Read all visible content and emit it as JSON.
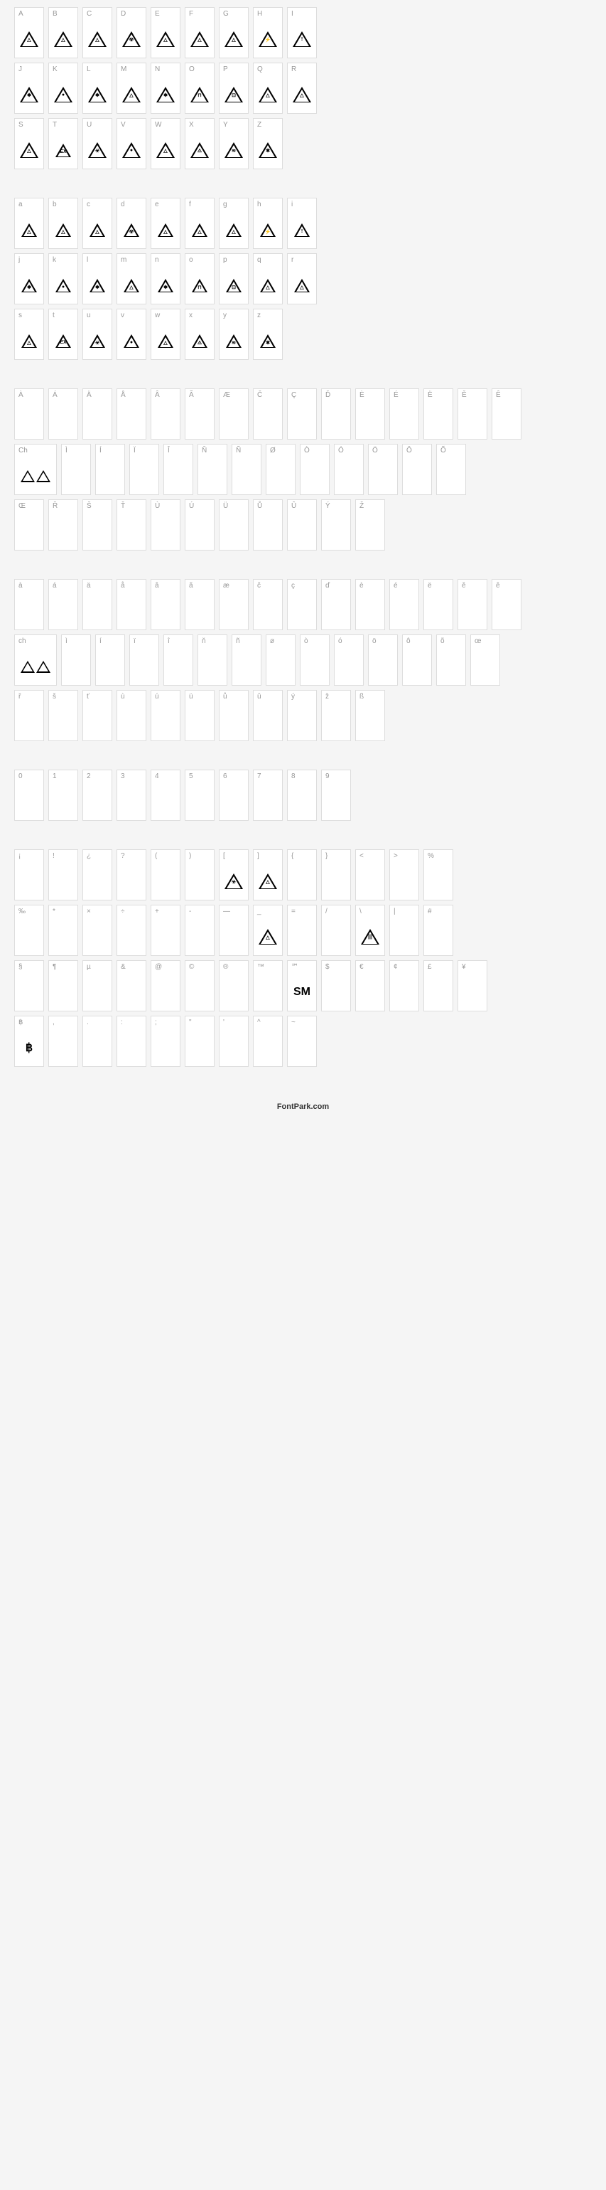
{
  "sections": [
    {
      "rows": [
        [
          {
            "label": "A",
            "glyph": "tri",
            "inner": "△"
          },
          {
            "label": "B",
            "glyph": "tri",
            "inner": "△"
          },
          {
            "label": "C",
            "glyph": "tri",
            "inner": "△"
          },
          {
            "label": "D",
            "glyph": "tri",
            "inner": "☢"
          },
          {
            "label": "E",
            "glyph": "tri",
            "inner": "△"
          },
          {
            "label": "F",
            "glyph": "tri",
            "inner": "△"
          },
          {
            "label": "G",
            "glyph": "tri",
            "inner": "△"
          },
          {
            "label": "H",
            "glyph": "tri",
            "inner": "⚡"
          },
          {
            "label": "I",
            "glyph": "tri",
            "inner": "!"
          }
        ],
        [
          {
            "label": "J",
            "glyph": "tri",
            "inner": "✱"
          },
          {
            "label": "K",
            "glyph": "tri",
            "inner": "●"
          },
          {
            "label": "L",
            "glyph": "tri",
            "inner": "✱"
          },
          {
            "label": "M",
            "glyph": "tri",
            "inner": "△"
          },
          {
            "label": "N",
            "glyph": "tri",
            "inner": "✱"
          },
          {
            "label": "O",
            "glyph": "tri",
            "inner": "⊓"
          },
          {
            "label": "P",
            "glyph": "tri",
            "inner": "⊡"
          },
          {
            "label": "Q",
            "glyph": "tri",
            "inner": "△"
          },
          {
            "label": "R",
            "glyph": "tri",
            "inner": "△"
          }
        ],
        [
          {
            "label": "S",
            "glyph": "tri",
            "inner": "△"
          },
          {
            "label": "T",
            "glyph": "tri",
            "inner": "EX",
            "small": true
          },
          {
            "label": "U",
            "glyph": "tri",
            "inner": "☣"
          },
          {
            "label": "V",
            "glyph": "tri",
            "inner": "●"
          },
          {
            "label": "W",
            "glyph": "tri",
            "inner": "△"
          },
          {
            "label": "X",
            "glyph": "tri",
            "inner": "⚠"
          },
          {
            "label": "Y",
            "glyph": "tri",
            "inner": "≋"
          },
          {
            "label": "Z",
            "glyph": "tri",
            "inner": "✱"
          }
        ]
      ]
    },
    {
      "rows": [
        [
          {
            "label": "a",
            "glyph": "tri",
            "inner": "△",
            "small": true
          },
          {
            "label": "b",
            "glyph": "tri",
            "inner": "△",
            "small": true
          },
          {
            "label": "c",
            "glyph": "tri",
            "inner": "△",
            "small": true
          },
          {
            "label": "d",
            "glyph": "tri",
            "inner": "☢",
            "small": true
          },
          {
            "label": "e",
            "glyph": "tri",
            "inner": "△",
            "small": true
          },
          {
            "label": "f",
            "glyph": "tri",
            "inner": "△",
            "small": true
          },
          {
            "label": "g",
            "glyph": "tri",
            "inner": "△",
            "small": true
          },
          {
            "label": "h",
            "glyph": "tri",
            "inner": "⚡",
            "small": true
          },
          {
            "label": "i",
            "glyph": "tri",
            "inner": "!",
            "small": true
          }
        ],
        [
          {
            "label": "j",
            "glyph": "tri",
            "inner": "✱",
            "small": true
          },
          {
            "label": "k",
            "glyph": "tri",
            "inner": "●",
            "small": true
          },
          {
            "label": "l",
            "glyph": "tri",
            "inner": "✱",
            "small": true
          },
          {
            "label": "m",
            "glyph": "tri",
            "inner": "△",
            "small": true
          },
          {
            "label": "n",
            "glyph": "tri",
            "inner": "✱",
            "small": true
          },
          {
            "label": "o",
            "glyph": "tri",
            "inner": "⊓",
            "small": true
          },
          {
            "label": "p",
            "glyph": "tri",
            "inner": "⊡",
            "small": true
          },
          {
            "label": "q",
            "glyph": "tri",
            "inner": "△",
            "small": true
          },
          {
            "label": "r",
            "glyph": "tri",
            "inner": "△",
            "small": true
          }
        ],
        [
          {
            "label": "s",
            "glyph": "tri",
            "inner": "△",
            "small": true
          },
          {
            "label": "t",
            "glyph": "tri",
            "inner": "EX",
            "small": true
          },
          {
            "label": "u",
            "glyph": "tri",
            "inner": "☣",
            "small": true
          },
          {
            "label": "v",
            "glyph": "tri",
            "inner": "●",
            "small": true
          },
          {
            "label": "w",
            "glyph": "tri",
            "inner": "△",
            "small": true
          },
          {
            "label": "x",
            "glyph": "tri",
            "inner": "⚠",
            "small": true
          },
          {
            "label": "y",
            "glyph": "tri",
            "inner": "≋",
            "small": true
          },
          {
            "label": "z",
            "glyph": "tri",
            "inner": "✱",
            "small": true
          }
        ]
      ]
    },
    {
      "rows": [
        [
          {
            "label": "À",
            "glyph": ""
          },
          {
            "label": "Á",
            "glyph": ""
          },
          {
            "label": "Ä",
            "glyph": ""
          },
          {
            "label": "Å",
            "glyph": ""
          },
          {
            "label": "Â",
            "glyph": ""
          },
          {
            "label": "Ã",
            "glyph": ""
          },
          {
            "label": "Æ",
            "glyph": ""
          },
          {
            "label": "Č",
            "glyph": ""
          },
          {
            "label": "Ç",
            "glyph": ""
          },
          {
            "label": "Ď",
            "glyph": ""
          },
          {
            "label": "È",
            "glyph": ""
          },
          {
            "label": "É",
            "glyph": ""
          },
          {
            "label": "Ë",
            "glyph": ""
          },
          {
            "label": "Ě",
            "glyph": ""
          },
          {
            "label": "Ê",
            "glyph": ""
          }
        ],
        [
          {
            "label": "Ch",
            "glyph": "dtri",
            "wide": true
          },
          {
            "label": "Ì",
            "glyph": ""
          },
          {
            "label": "Í",
            "glyph": ""
          },
          {
            "label": "Ï",
            "glyph": ""
          },
          {
            "label": "Î",
            "glyph": ""
          },
          {
            "label": "Ň",
            "glyph": ""
          },
          {
            "label": "Ñ",
            "glyph": ""
          },
          {
            "label": "Ø",
            "glyph": ""
          },
          {
            "label": "Ò",
            "glyph": ""
          },
          {
            "label": "Ó",
            "glyph": ""
          },
          {
            "label": "Ö",
            "glyph": ""
          },
          {
            "label": "Ô",
            "glyph": ""
          },
          {
            "label": "Õ",
            "glyph": ""
          }
        ],
        [
          {
            "label": "Œ",
            "glyph": ""
          },
          {
            "label": "Ř",
            "glyph": ""
          },
          {
            "label": "Š",
            "glyph": ""
          },
          {
            "label": "Ť",
            "glyph": ""
          },
          {
            "label": "Ù",
            "glyph": ""
          },
          {
            "label": "Ú",
            "glyph": ""
          },
          {
            "label": "Ü",
            "glyph": ""
          },
          {
            "label": "Ů",
            "glyph": ""
          },
          {
            "label": "Û",
            "glyph": ""
          },
          {
            "label": "Ý",
            "glyph": ""
          },
          {
            "label": "Ž",
            "glyph": ""
          }
        ]
      ]
    },
    {
      "rows": [
        [
          {
            "label": "à",
            "glyph": ""
          },
          {
            "label": "á",
            "glyph": ""
          },
          {
            "label": "ä",
            "glyph": ""
          },
          {
            "label": "å",
            "glyph": ""
          },
          {
            "label": "â",
            "glyph": ""
          },
          {
            "label": "ã",
            "glyph": ""
          },
          {
            "label": "æ",
            "glyph": ""
          },
          {
            "label": "č",
            "glyph": ""
          },
          {
            "label": "ç",
            "glyph": ""
          },
          {
            "label": "ď",
            "glyph": ""
          },
          {
            "label": "è",
            "glyph": ""
          },
          {
            "label": "é",
            "glyph": ""
          },
          {
            "label": "ë",
            "glyph": ""
          },
          {
            "label": "ě",
            "glyph": ""
          },
          {
            "label": "ê",
            "glyph": ""
          }
        ],
        [
          {
            "label": "ch",
            "glyph": "dtri",
            "wide": true,
            "small": true
          },
          {
            "label": "ì",
            "glyph": ""
          },
          {
            "label": "í",
            "glyph": ""
          },
          {
            "label": "ï",
            "glyph": ""
          },
          {
            "label": "î",
            "glyph": ""
          },
          {
            "label": "ň",
            "glyph": ""
          },
          {
            "label": "ñ",
            "glyph": ""
          },
          {
            "label": "ø",
            "glyph": ""
          },
          {
            "label": "ò",
            "glyph": ""
          },
          {
            "label": "ó",
            "glyph": ""
          },
          {
            "label": "ö",
            "glyph": ""
          },
          {
            "label": "ô",
            "glyph": ""
          },
          {
            "label": "õ",
            "glyph": ""
          },
          {
            "label": "œ",
            "glyph": ""
          }
        ],
        [
          {
            "label": "ř",
            "glyph": ""
          },
          {
            "label": "š",
            "glyph": ""
          },
          {
            "label": "ť",
            "glyph": ""
          },
          {
            "label": "ù",
            "glyph": ""
          },
          {
            "label": "ú",
            "glyph": ""
          },
          {
            "label": "ü",
            "glyph": ""
          },
          {
            "label": "ů",
            "glyph": ""
          },
          {
            "label": "û",
            "glyph": ""
          },
          {
            "label": "ý",
            "glyph": ""
          },
          {
            "label": "ž",
            "glyph": ""
          },
          {
            "label": "ß",
            "glyph": ""
          }
        ]
      ]
    },
    {
      "rows": [
        [
          {
            "label": "0",
            "glyph": ""
          },
          {
            "label": "1",
            "glyph": ""
          },
          {
            "label": "2",
            "glyph": ""
          },
          {
            "label": "3",
            "glyph": ""
          },
          {
            "label": "4",
            "glyph": ""
          },
          {
            "label": "5",
            "glyph": ""
          },
          {
            "label": "6",
            "glyph": ""
          },
          {
            "label": "7",
            "glyph": ""
          },
          {
            "label": "8",
            "glyph": ""
          },
          {
            "label": "9",
            "glyph": ""
          }
        ]
      ]
    },
    {
      "rows": [
        [
          {
            "label": "¡",
            "glyph": ""
          },
          {
            "label": "!",
            "glyph": ""
          },
          {
            "label": "¿",
            "glyph": ""
          },
          {
            "label": "?",
            "glyph": ""
          },
          {
            "label": "(",
            "glyph": ""
          },
          {
            "label": ")",
            "glyph": ""
          },
          {
            "label": "[",
            "glyph": "tri",
            "inner": "☣"
          },
          {
            "label": "]",
            "glyph": "tri",
            "inner": "△"
          },
          {
            "label": "{",
            "glyph": ""
          },
          {
            "label": "}",
            "glyph": ""
          },
          {
            "label": "<",
            "glyph": ""
          },
          {
            "label": ">",
            "glyph": ""
          },
          {
            "label": "%",
            "glyph": ""
          }
        ],
        [
          {
            "label": "‰",
            "glyph": ""
          },
          {
            "label": "*",
            "glyph": ""
          },
          {
            "label": "×",
            "glyph": ""
          },
          {
            "label": "÷",
            "glyph": ""
          },
          {
            "label": "+",
            "glyph": ""
          },
          {
            "label": "-",
            "glyph": ""
          },
          {
            "label": "—",
            "glyph": ""
          },
          {
            "label": "_",
            "glyph": "tri",
            "inner": "△"
          },
          {
            "label": "=",
            "glyph": ""
          },
          {
            "label": "/",
            "glyph": ""
          },
          {
            "label": "\\",
            "glyph": "tri",
            "inner": "|||"
          },
          {
            "label": "|",
            "glyph": ""
          },
          {
            "label": "#",
            "glyph": ""
          }
        ],
        [
          {
            "label": "§",
            "glyph": ""
          },
          {
            "label": "¶",
            "glyph": ""
          },
          {
            "label": "µ",
            "glyph": ""
          },
          {
            "label": "&",
            "glyph": ""
          },
          {
            "label": "@",
            "glyph": ""
          },
          {
            "label": "©",
            "glyph": ""
          },
          {
            "label": "®",
            "glyph": ""
          },
          {
            "label": "™",
            "glyph": ""
          },
          {
            "label": "℠",
            "glyph": "text",
            "text": "SM"
          },
          {
            "label": "$",
            "glyph": ""
          },
          {
            "label": "€",
            "glyph": ""
          },
          {
            "label": "¢",
            "glyph": ""
          },
          {
            "label": "£",
            "glyph": ""
          },
          {
            "label": "¥",
            "glyph": ""
          }
        ],
        [
          {
            "label": "฿",
            "glyph": "text",
            "text": "฿"
          },
          {
            "label": ",",
            "glyph": ""
          },
          {
            "label": ".",
            "glyph": ""
          },
          {
            "label": ":",
            "glyph": ""
          },
          {
            "label": ";",
            "glyph": ""
          },
          {
            "label": "\"",
            "glyph": ""
          },
          {
            "label": "'",
            "glyph": ""
          },
          {
            "label": "^",
            "glyph": ""
          },
          {
            "label": "~",
            "glyph": ""
          }
        ]
      ]
    }
  ],
  "footer": "FontPark.com"
}
